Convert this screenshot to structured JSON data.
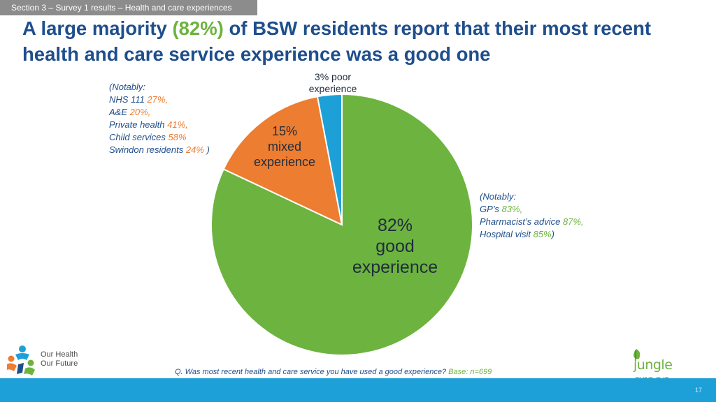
{
  "section_tag": "Section 3 – Survey 1 results – Health and care experiences",
  "title": {
    "part1": "A large majority ",
    "highlight": "(82%)",
    "part2": " of BSW residents report that their most recent health and care service experience was a good one"
  },
  "chart_data": {
    "type": "pie",
    "slices": [
      {
        "label": "good experience",
        "value": 82,
        "color": "#6db33f"
      },
      {
        "label": "mixed experience",
        "value": 15,
        "color": "#ed7d31"
      },
      {
        "label": "poor experience",
        "value": 3,
        "color": "#1da0d8"
      }
    ],
    "labels": {
      "poor": "3% poor experience",
      "mixed_pct": "15%",
      "mixed_text": "mixed experience",
      "good_pct": "82%",
      "good_line1": "good",
      "good_line2": "experience"
    }
  },
  "notes": {
    "left": {
      "intro": "(Notably:",
      "items": [
        {
          "name": "NHS 111",
          "value": "27%,"
        },
        {
          "name": "A&E ",
          "value": "20%,"
        },
        {
          "name": "Private health",
          "value": "41%,"
        },
        {
          "name": "Child services",
          "value": "58%"
        },
        {
          "name": "Swindon residents",
          "value": "24%"
        }
      ],
      "close": " )"
    },
    "right": {
      "intro": "(Notably:",
      "items": [
        {
          "name": "GP’s",
          "value": "83%,"
        },
        {
          "name": "Pharmacist’s advice",
          "value": "87%,"
        },
        {
          "name": "Hospital visit",
          "value": "85%"
        }
      ],
      "close": ")"
    }
  },
  "footer": {
    "question": "Q. Was most recent health and care service you have used a good experience?",
    "base": "Base: n=699",
    "page_number": "17"
  },
  "logos": {
    "left_line1": "Our Health",
    "left_line2": "Our Future",
    "right": "jungle green"
  }
}
